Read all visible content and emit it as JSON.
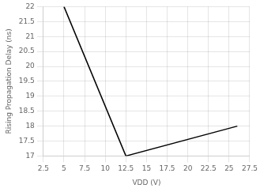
{
  "chart_data": {
    "type": "line",
    "xlabel": "VDD (V)",
    "ylabel": "Rising Propagation Delay (ns)",
    "xlim": [
      2.5,
      27.5
    ],
    "xticks": [
      2.5,
      5,
      7.5,
      10,
      12.5,
      15,
      17.5,
      20,
      22.5,
      25,
      27.5
    ],
    "ylim": [
      17,
      22
    ],
    "yticks": [
      17,
      17.5,
      18,
      18.5,
      19,
      19.5,
      20,
      20.5,
      21,
      21.5,
      22
    ],
    "grid": true,
    "series": [
      {
        "x": [
          5,
          12.5
        ],
        "values": [
          22.0,
          17.0
        ],
        "color": "#000000"
      },
      {
        "x": [
          12.5,
          26.0
        ],
        "values": [
          17.0,
          18.0
        ],
        "color": "#000000"
      }
    ]
  }
}
